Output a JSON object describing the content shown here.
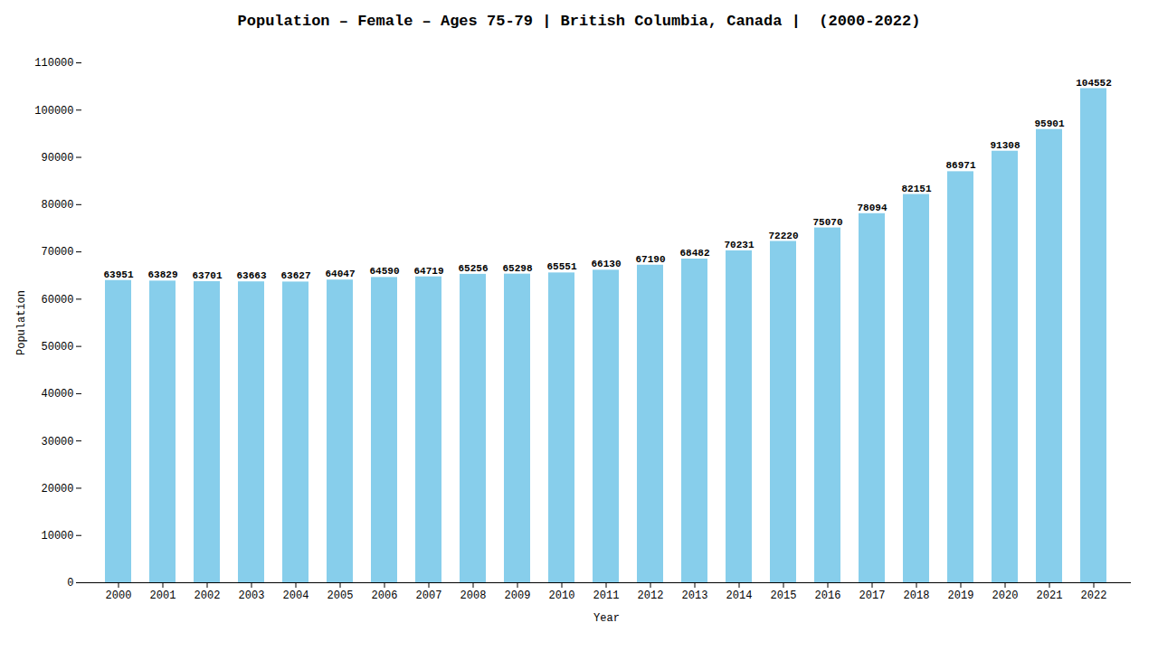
{
  "chart_data": {
    "type": "bar",
    "title": "Population – Female – Ages 75-79 | British Columbia, Canada |  (2000-2022)",
    "xlabel": "Year",
    "ylabel": "Population",
    "categories": [
      "2000",
      "2001",
      "2002",
      "2003",
      "2004",
      "2005",
      "2006",
      "2007",
      "2008",
      "2009",
      "2010",
      "2011",
      "2012",
      "2013",
      "2014",
      "2015",
      "2016",
      "2017",
      "2018",
      "2019",
      "2020",
      "2021",
      "2022"
    ],
    "values": [
      63951,
      63829,
      63701,
      63663,
      63627,
      64047,
      64590,
      64719,
      65256,
      65298,
      65551,
      66130,
      67190,
      68482,
      70231,
      72220,
      75070,
      78094,
      82151,
      86971,
      91308,
      95901,
      104552
    ],
    "color": "#87CEEB",
    "ylim": [
      0,
      110000
    ],
    "yticks": [
      0,
      10000,
      20000,
      30000,
      40000,
      50000,
      60000,
      70000,
      80000,
      90000,
      100000,
      110000
    ],
    "grid": false,
    "data_labels": true
  }
}
